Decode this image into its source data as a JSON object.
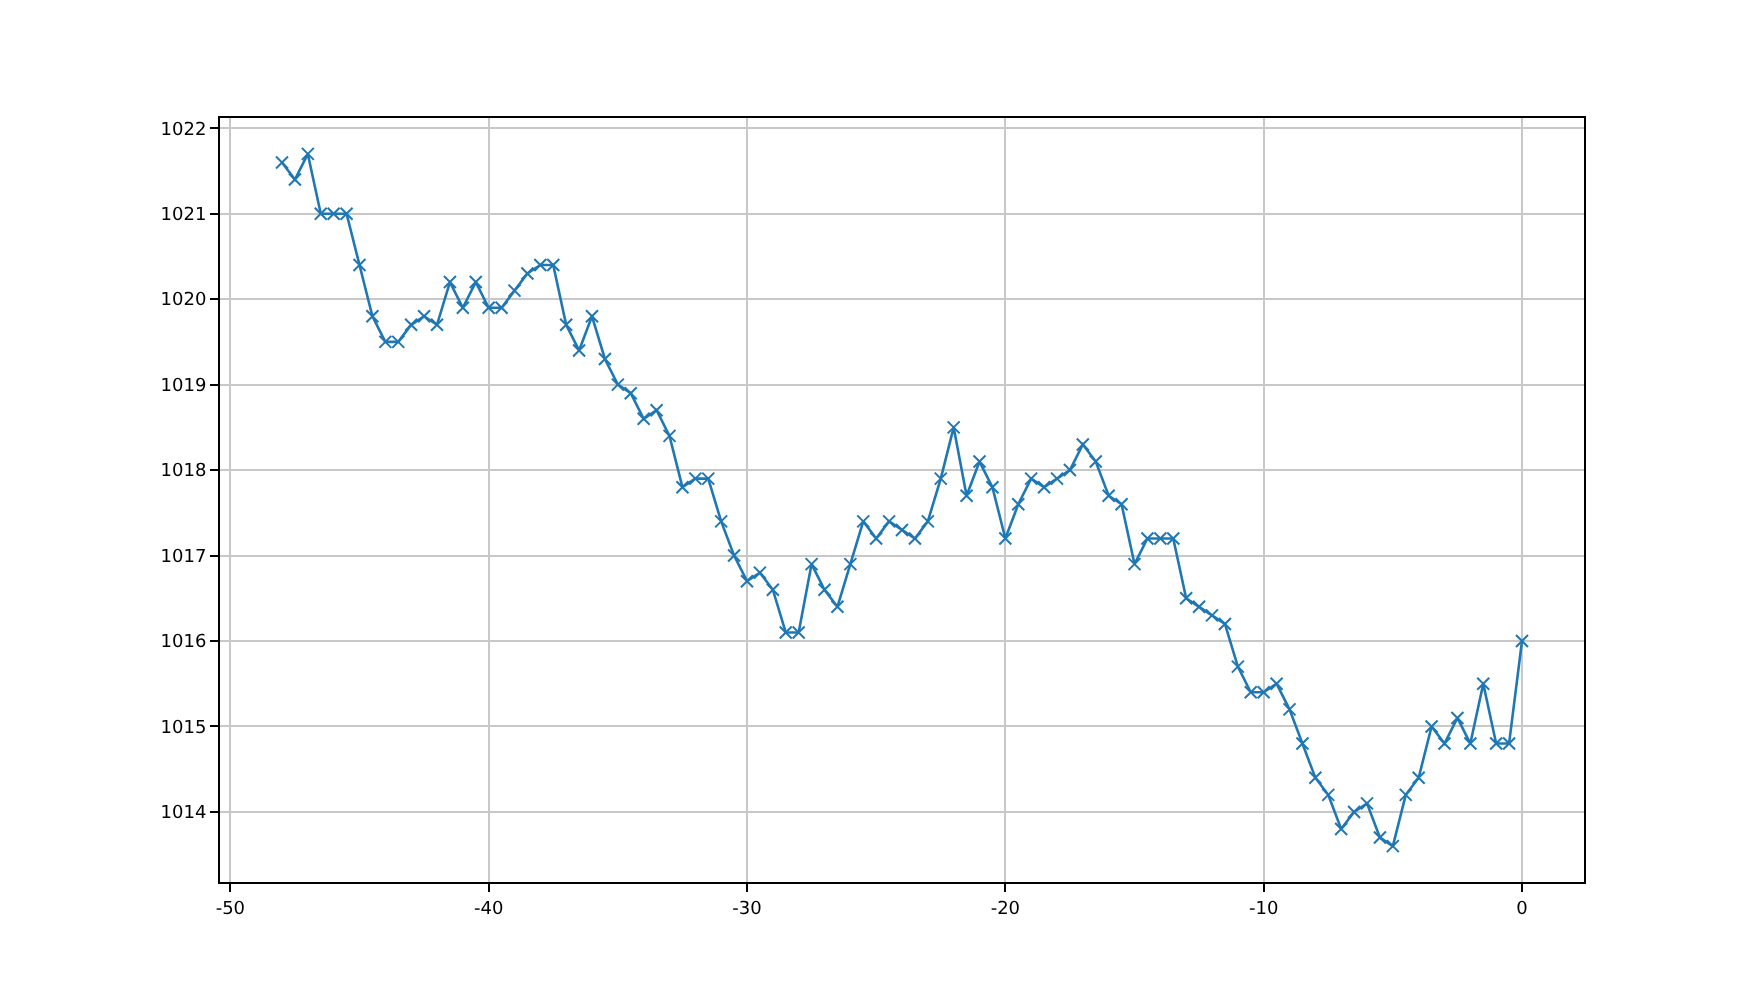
{
  "chart_data": {
    "type": "line",
    "color": "#1f77b4",
    "marker": "cross",
    "line_style": "solid",
    "grid": true,
    "x": [
      -48,
      -47.5,
      -47,
      -46.5,
      -46,
      -45.5,
      -45,
      -44.5,
      -44,
      -43.5,
      -43,
      -42.5,
      -42,
      -41.5,
      -41,
      -40.5,
      -40,
      -39.5,
      -39,
      -38.5,
      -38,
      -37.5,
      -37,
      -36.5,
      -36,
      -35.5,
      -35,
      -34.5,
      -34,
      -33.5,
      -33,
      -32.5,
      -32,
      -31.5,
      -31,
      -30.5,
      -30,
      -29.5,
      -29,
      -28.5,
      -28,
      -27.5,
      -27,
      -26.5,
      -26,
      -25.5,
      -25,
      -24.5,
      -24,
      -23.5,
      -23,
      -22.5,
      -22,
      -21.5,
      -21,
      -20.5,
      -20,
      -19.5,
      -19,
      -18.5,
      -18,
      -17.5,
      -17,
      -16.5,
      -16,
      -15.5,
      -15,
      -14.5,
      -14,
      -13.5,
      -13,
      -12.5,
      -12,
      -11.5,
      -11,
      -10.5,
      -10,
      -9.5,
      -9,
      -8.5,
      -8,
      -7.5,
      -7,
      -6.5,
      -6,
      -5.5,
      -5,
      -4.5,
      -4,
      -3.5,
      -3,
      -2.5,
      -2,
      -1.5,
      -1,
      -0.5,
      0
    ],
    "values": [
      1021.6,
      1021.4,
      1021.7,
      1021.0,
      1021.0,
      1021.0,
      1020.4,
      1019.8,
      1019.5,
      1019.5,
      1019.7,
      1019.8,
      1019.7,
      1020.2,
      1019.9,
      1020.2,
      1019.9,
      1019.9,
      1020.1,
      1020.3,
      1020.4,
      1020.4,
      1019.7,
      1019.4,
      1019.8,
      1019.3,
      1019.0,
      1018.9,
      1018.6,
      1018.7,
      1018.4,
      1017.8,
      1017.9,
      1017.9,
      1017.4,
      1017.0,
      1016.7,
      1016.8,
      1016.6,
      1016.1,
      1016.1,
      1016.9,
      1016.6,
      1016.4,
      1016.9,
      1017.4,
      1017.2,
      1017.4,
      1017.3,
      1017.2,
      1017.4,
      1017.9,
      1018.5,
      1017.7,
      1018.1,
      1017.8,
      1017.2,
      1017.6,
      1017.9,
      1017.8,
      1017.9,
      1018.0,
      1018.3,
      1018.1,
      1017.7,
      1017.6,
      1016.9,
      1017.2,
      1017.2,
      1017.2,
      1016.5,
      1016.4,
      1016.3,
      1016.2,
      1015.7,
      1015.4,
      1015.4,
      1015.5,
      1015.2,
      1014.8,
      1014.4,
      1014.2,
      1013.8,
      1014.0,
      1014.1,
      1013.7,
      1013.6,
      1014.2,
      1014.4,
      1015.0,
      1014.8,
      1015.1,
      1014.8,
      1015.5,
      1014.8,
      1014.8,
      1016.0
    ],
    "xlim": [
      -50.4,
      2.4
    ],
    "xticks": [
      -50,
      -40,
      -30,
      -20,
      -10,
      0
    ],
    "ylim": [
      1013.18,
      1022.12
    ],
    "yticks": [
      1014,
      1015,
      1016,
      1017,
      1018,
      1019,
      1020,
      1021,
      1022
    ]
  }
}
